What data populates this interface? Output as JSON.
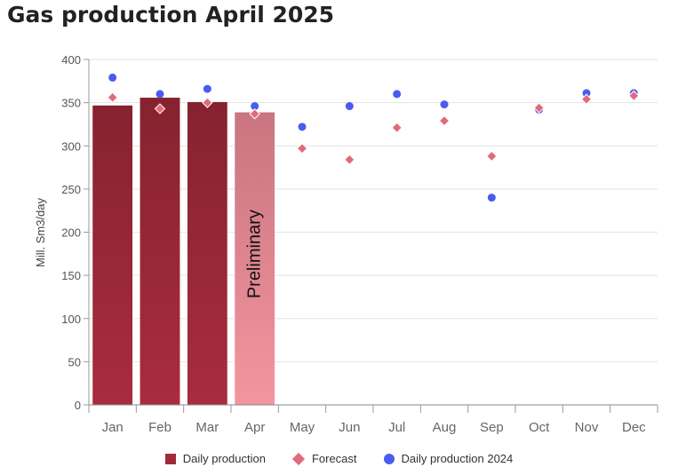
{
  "chart_data": {
    "type": "bar",
    "title": "Gas production April 2025",
    "ylabel": "Mill. Sm3/day",
    "xlabel": "",
    "ylim": [
      0,
      400
    ],
    "yticks": [
      0,
      50,
      100,
      150,
      200,
      250,
      300,
      350,
      400
    ],
    "categories": [
      "Jan",
      "Feb",
      "Mar",
      "Apr",
      "May",
      "Jun",
      "Jul",
      "Aug",
      "Sep",
      "Oct",
      "Nov",
      "Dec"
    ],
    "grid": true,
    "legend_position": "bottom",
    "bar_annotation": {
      "category": "Apr",
      "text": "Preliminary"
    },
    "series": [
      {
        "name": "Daily production",
        "type": "bar",
        "color": "#a12a3a",
        "values": [
          347,
          356,
          351,
          339,
          null,
          null,
          null,
          null,
          null,
          null,
          null,
          null
        ]
      },
      {
        "name": "Forecast",
        "type": "diamond",
        "color": "#e06b7a",
        "values": [
          356,
          343,
          350,
          337,
          297,
          284,
          321,
          329,
          288,
          344,
          354,
          358
        ]
      },
      {
        "name": "Daily production 2024",
        "type": "circle",
        "color": "#4a5cf0",
        "values": [
          379,
          360,
          366,
          346,
          322,
          346,
          360,
          348,
          240,
          342,
          361,
          361
        ]
      }
    ],
    "preliminary_bar_color": "#f0939d"
  }
}
